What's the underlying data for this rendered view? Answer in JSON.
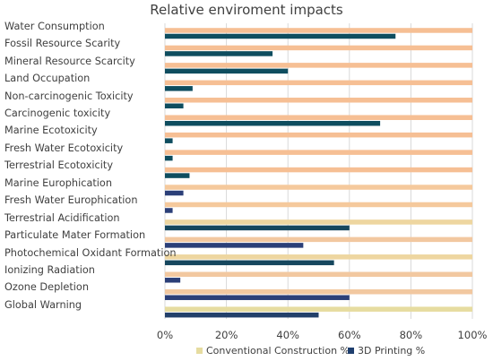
{
  "chart_data": {
    "type": "bar",
    "orientation": "horizontal",
    "title": "Relative enviroment impacts",
    "categories": [
      "Water Consumption",
      "Fossil Resource Scarity",
      "Mineral Resource Scarcity",
      "Land Occupation",
      "Non-carcinogenic Toxicity",
      "Carcinogenic toxicity",
      "Marine Ecotoxicity",
      "Fresh Water Ecotoxicity",
      "Terrestrial Ecotoxicity",
      "Marine Europhication",
      "Fresh Water Europhication",
      "Terrestrial Acidification",
      "Particulate Mater Formation",
      "Photochemical Oxidant Formation",
      "Ionizing Radiation",
      "Ozone Depletion",
      "Global Warning"
    ],
    "series": [
      {
        "name": "Conventional Construction %",
        "values": [
          100,
          100,
          100,
          100,
          100,
          100,
          100,
          100,
          100,
          100,
          100,
          100,
          100,
          100,
          100,
          100,
          100
        ],
        "colors": [
          "#f6bf94",
          "#f6bf94",
          "#f6bf94",
          "#f6bf94",
          "#f6bf94",
          "#f6bf94",
          "#f6bf94",
          "#f6bf94",
          "#f6bf94",
          "#f5c99c",
          "#f5c99c",
          "#eed6a0",
          "#f2c8a0",
          "#eed6a0",
          "#f2c8a0",
          "#f2c8a0",
          "#e6dca0"
        ]
      },
      {
        "name": "3D Printing %",
        "values": [
          75,
          35,
          40,
          9,
          6,
          70,
          2.5,
          2.5,
          8,
          6,
          2.5,
          60,
          45,
          55,
          5,
          60,
          50
        ],
        "colors": [
          "#0e4d5f",
          "#0e4d5f",
          "#0e4d5f",
          "#0e4d5f",
          "#0e4d5f",
          "#0e4d5f",
          "#0e4d5f",
          "#0e4d5f",
          "#0e4d5f",
          "#2b3f78",
          "#2b3f78",
          "#16475e",
          "#2b3f78",
          "#16475e",
          "#2b3f78",
          "#2b3f78",
          "#23406a"
        ]
      }
    ],
    "xlim": [
      0,
      100
    ],
    "xticks": [
      "0%",
      "20%",
      "40%",
      "60%",
      "80%",
      "100%"
    ],
    "xgrid": true,
    "legend_position": "bottom",
    "legend_colors": [
      "#e6dca0",
      "#1f3f6e"
    ]
  }
}
